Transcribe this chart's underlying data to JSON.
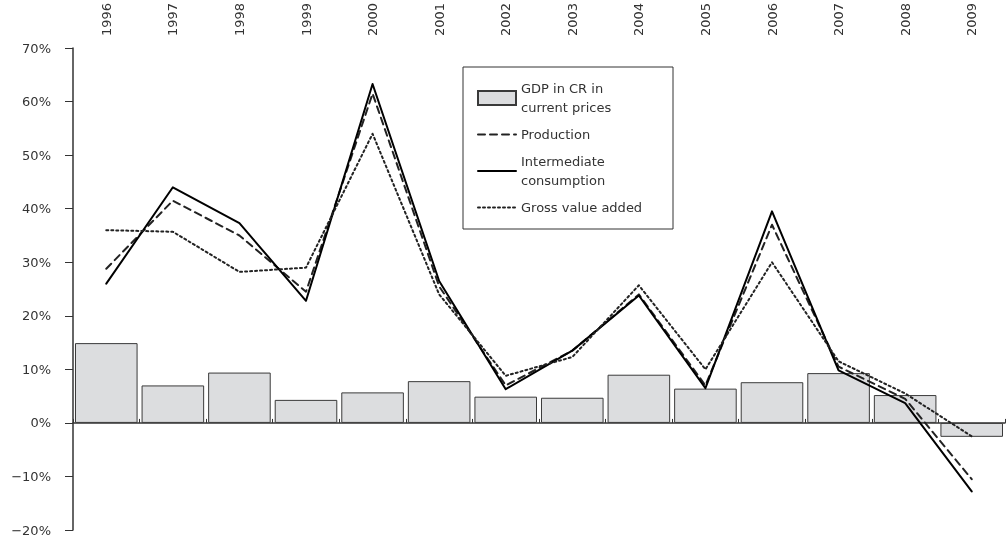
{
  "chart_data": {
    "type": "bar",
    "categories": [
      "1996",
      "1997",
      "1998",
      "1999",
      "2000",
      "2001",
      "2002",
      "2003",
      "2004",
      "2005",
      "2006",
      "2007",
      "2008",
      "2009"
    ],
    "series": [
      {
        "name": "GDP in CR in current prices",
        "color": "#dcdddf",
        "values": [
          14.9,
          7.0,
          9.4,
          4.3,
          5.7,
          7.8,
          4.9,
          4.7,
          9.0,
          6.4,
          7.6,
          9.3,
          5.2,
          -2.6
        ]
      },
      {
        "name": "Production",
        "type": "line",
        "color": "#222222",
        "line_style": "dashed",
        "values": [
          28.8,
          41.5,
          35.0,
          24.5,
          61.5,
          25.5,
          7.0,
          13.5,
          24.0,
          7.0,
          37.0,
          10.5,
          4.5,
          -10.5
        ]
      },
      {
        "name": "Intermediate consumption",
        "type": "line",
        "color": "#000000",
        "line_style": "solid",
        "values": [
          26.0,
          44.0,
          37.3,
          22.8,
          63.3,
          26.5,
          6.3,
          13.5,
          23.8,
          6.5,
          39.5,
          9.8,
          3.7,
          -12.8
        ]
      },
      {
        "name": "Gross value added",
        "type": "line",
        "color": "#222222",
        "line_style": "dotted",
        "values": [
          36.0,
          35.7,
          28.2,
          29.0,
          54.0,
          24.0,
          8.8,
          12.3,
          25.7,
          10.0,
          30.0,
          11.5,
          5.5,
          -2.5
        ]
      }
    ],
    "ylim": [
      -20,
      70
    ],
    "yticks": [
      {
        "value": -20,
        "label": "−20%"
      },
      {
        "value": -10,
        "label": "−10%"
      },
      {
        "value": 0,
        "label": "0%"
      },
      {
        "value": 10,
        "label": "10%"
      },
      {
        "value": 20,
        "label": "20%"
      },
      {
        "value": 30,
        "label": "30%"
      },
      {
        "value": 40,
        "label": "40%"
      },
      {
        "value": 50,
        "label": "50%"
      },
      {
        "value": 60,
        "label": "60%"
      },
      {
        "value": 70,
        "label": "70%"
      }
    ],
    "legend": "top right",
    "marker": "none"
  }
}
